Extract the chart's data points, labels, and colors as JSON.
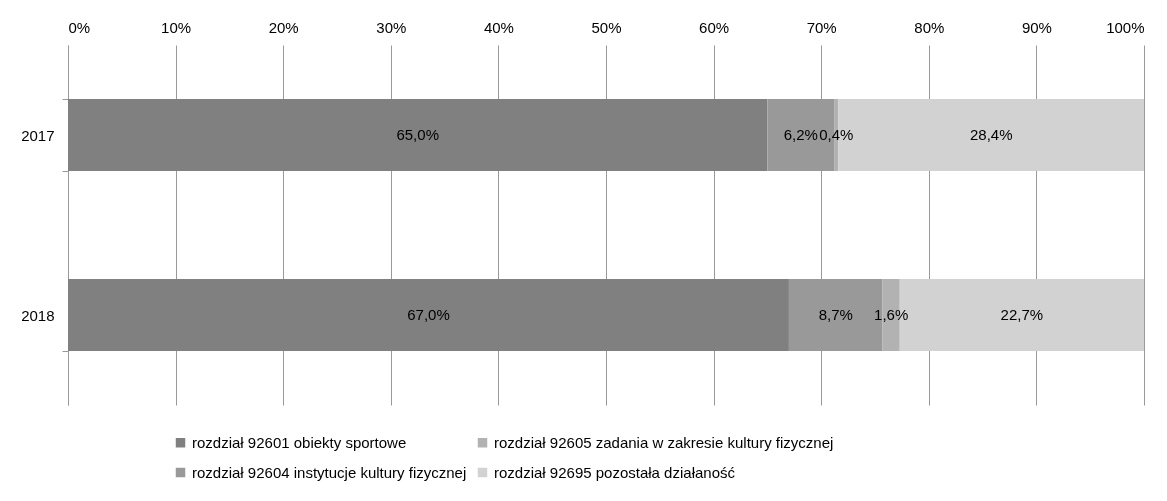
{
  "chart_data": {
    "type": "bar",
    "orientation": "horizontal",
    "stacked": true,
    "categories": [
      "2017",
      "2018"
    ],
    "series": [
      {
        "name": "rozdział 92601 obiekty sportowe",
        "color": "#808080",
        "values": [
          65.0,
          67.0
        ],
        "value_labels": [
          "65,0%",
          "67,0%"
        ]
      },
      {
        "name": "rozdział 92604 instytucje kultury fizycznej",
        "color": "#999999",
        "values": [
          6.2,
          8.7
        ],
        "value_labels": [
          "6,2%",
          "8,7%"
        ]
      },
      {
        "name": "rozdział 92605 zadania w zakresie kultury fizycznej",
        "color": "#b2b2b2",
        "values": [
          0.4,
          1.6
        ],
        "value_labels": [
          "0,4%",
          "1,6%"
        ]
      },
      {
        "name": "rozdział 92695 pozostała działaność",
        "color": "#d2d2d2",
        "values": [
          28.4,
          22.7
        ],
        "value_labels": [
          "28,4%",
          "22,7%"
        ]
      }
    ],
    "xlim": [
      0,
      100
    ],
    "xticks": [
      {
        "value": 0,
        "label": "0%"
      },
      {
        "value": 10,
        "label": "10%"
      },
      {
        "value": 20,
        "label": "20%"
      },
      {
        "value": 30,
        "label": "30%"
      },
      {
        "value": 40,
        "label": "40%"
      },
      {
        "value": 50,
        "label": "50%"
      },
      {
        "value": 60,
        "label": "60%"
      },
      {
        "value": 70,
        "label": "70%"
      },
      {
        "value": 80,
        "label": "80%"
      },
      {
        "value": 90,
        "label": "90%"
      },
      {
        "value": 100,
        "label": "100%"
      }
    ],
    "grid": "x",
    "legend": "bottom"
  }
}
